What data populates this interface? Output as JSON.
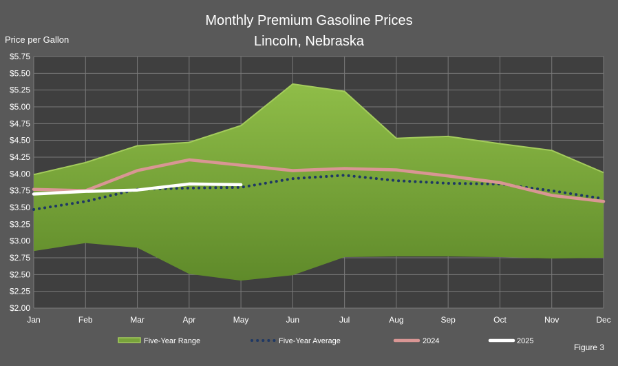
{
  "title_line1": "Monthly Premium Gasoline Prices",
  "title_line2": "Lincoln, Nebraska",
  "ylabel": "Price per Gallon",
  "figure_label": "Figure 3",
  "colors": {
    "background": "#595959",
    "plot_bg": "#3f3f3f",
    "grid": "#7a7a7a",
    "range_fill": "#78a33b",
    "range_edge": "#a4cc5c",
    "avg": "#1f3864",
    "y2024": "#d99694",
    "y2025": "#ffffff"
  },
  "chart_data": {
    "type": "area",
    "categories": [
      "Jan",
      "Feb",
      "Mar",
      "Apr",
      "May",
      "Jun",
      "Jul",
      "Aug",
      "Sep",
      "Oct",
      "Nov",
      "Dec"
    ],
    "ylim": [
      2.0,
      5.75
    ],
    "yticks": [
      "$2.00",
      "$2.25",
      "$2.50",
      "$2.75",
      "$3.00",
      "$3.25",
      "$3.50",
      "$3.75",
      "$4.00",
      "$4.25",
      "$4.50",
      "$4.75",
      "$5.00",
      "$5.25",
      "$5.50",
      "$5.75"
    ],
    "grid": true,
    "legend_position": "bottom",
    "range": {
      "name": "Five-Year Range",
      "high": [
        3.99,
        4.17,
        4.42,
        4.47,
        4.72,
        5.34,
        5.23,
        4.53,
        4.56,
        4.45,
        4.35,
        4.02
      ],
      "low": [
        2.85,
        2.97,
        2.9,
        2.51,
        2.41,
        2.49,
        2.76,
        2.77,
        2.77,
        2.76,
        2.74,
        2.75
      ]
    },
    "series": [
      {
        "name": "Five-Year Average",
        "values": [
          3.47,
          3.59,
          3.77,
          3.79,
          3.8,
          3.93,
          3.98,
          3.9,
          3.86,
          3.85,
          3.75,
          3.63
        ]
      },
      {
        "name": "2024",
        "values": [
          3.77,
          3.75,
          4.05,
          4.21,
          4.13,
          4.05,
          4.08,
          4.06,
          3.97,
          3.87,
          3.68,
          3.59
        ]
      },
      {
        "name": "2025",
        "values": [
          3.7,
          3.74,
          3.76,
          3.85,
          3.84,
          null,
          null,
          null,
          null,
          null,
          null,
          null
        ]
      }
    ]
  }
}
